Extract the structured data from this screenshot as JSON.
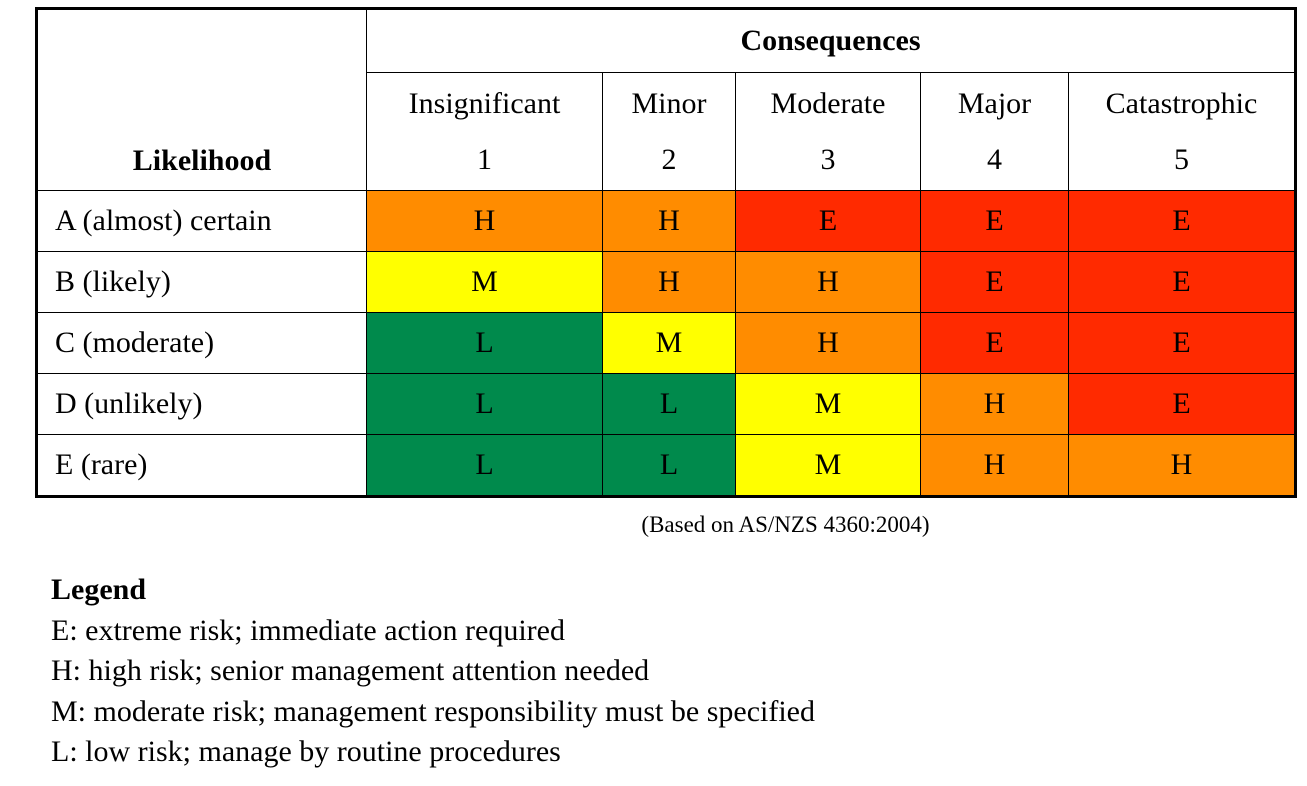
{
  "table": {
    "likelihood_header": "Likelihood",
    "consequences_header": "Consequences",
    "columns": [
      {
        "name": "Insignificant",
        "level": "1"
      },
      {
        "name": "Minor",
        "level": "2"
      },
      {
        "name": "Moderate",
        "level": "3"
      },
      {
        "name": "Major",
        "level": "4"
      },
      {
        "name": "Catastrophic",
        "level": "5"
      }
    ],
    "rows": [
      {
        "label": "A (almost) certain",
        "cells": [
          "H",
          "H",
          "E",
          "E",
          "E"
        ]
      },
      {
        "label": "B (likely)",
        "cells": [
          "M",
          "H",
          "H",
          "E",
          "E"
        ]
      },
      {
        "label": "C (moderate)",
        "cells": [
          "L",
          "M",
          "H",
          "E",
          "E"
        ]
      },
      {
        "label": "D (unlikely)",
        "cells": [
          "L",
          "L",
          "M",
          "H",
          "E"
        ]
      },
      {
        "label": "E (rare)",
        "cells": [
          "L",
          "L",
          "M",
          "H",
          "H"
        ]
      }
    ]
  },
  "rating_colors": {
    "E": "#ff2a00",
    "H": "#ff8c00",
    "M": "#ffff00",
    "L": "#008a4c"
  },
  "source_note": "(Based on AS/NZS 4360:2004)",
  "legend": {
    "title": "Legend",
    "items": [
      "E: extreme risk; immediate action required",
      "H: high risk; senior management attention needed",
      "M: moderate risk; management responsibility must be specified",
      "L: low risk; manage by routine procedures"
    ]
  }
}
